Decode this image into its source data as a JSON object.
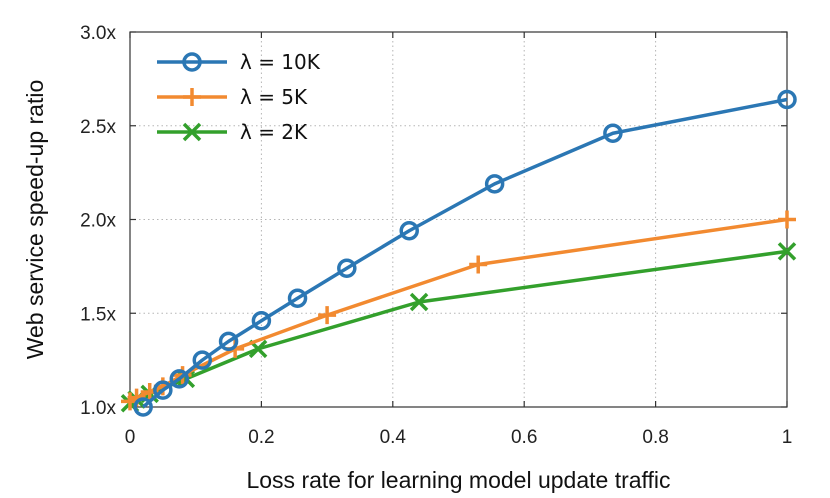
{
  "chart_data": {
    "type": "line",
    "xlabel": "Loss rate for learning model update traffic",
    "ylabel": "Web service speed-up ratio",
    "xlim": [
      0,
      1
    ],
    "ylim": [
      1.0,
      3.0
    ],
    "x_ticks": [
      {
        "value": 0,
        "label": "0"
      },
      {
        "value": 0.2,
        "label": "0.2"
      },
      {
        "value": 0.4,
        "label": "0.4"
      },
      {
        "value": 0.6,
        "label": "0.6"
      },
      {
        "value": 0.8,
        "label": "0.8"
      },
      {
        "value": 1,
        "label": "1"
      }
    ],
    "y_ticks": [
      {
        "value": 1.0,
        "label": "1.0x"
      },
      {
        "value": 1.5,
        "label": "1.5x"
      },
      {
        "value": 2.0,
        "label": "2.0x"
      },
      {
        "value": 2.5,
        "label": "2.5x"
      },
      {
        "value": 3.0,
        "label": "3.0x"
      }
    ],
    "grid": true,
    "legend_position": "top-left",
    "series": [
      {
        "name": "λ = 10K",
        "color": "#2b77b4",
        "marker": "circle",
        "points": [
          [
            0.02,
            1.0
          ],
          [
            0.05,
            1.09
          ],
          [
            0.075,
            1.15
          ],
          [
            0.11,
            1.25
          ],
          [
            0.15,
            1.35
          ],
          [
            0.2,
            1.46
          ],
          [
            0.255,
            1.58
          ],
          [
            0.33,
            1.74
          ],
          [
            0.425,
            1.94
          ],
          [
            0.555,
            2.19
          ],
          [
            0.735,
            2.46
          ],
          [
            1.0,
            2.64
          ]
        ]
      },
      {
        "name": "λ = 5K",
        "color": "#f28a30",
        "marker": "plus",
        "points": [
          [
            0.0,
            1.03
          ],
          [
            0.01,
            1.05
          ],
          [
            0.03,
            1.08
          ],
          [
            0.05,
            1.11
          ],
          [
            0.08,
            1.17
          ],
          [
            0.16,
            1.31
          ],
          [
            0.3,
            1.49
          ],
          [
            0.53,
            1.76
          ],
          [
            1.0,
            2.0
          ]
        ]
      },
      {
        "name": "λ = 2K",
        "color": "#33a02c",
        "marker": "x",
        "points": [
          [
            0.0,
            1.02
          ],
          [
            0.01,
            1.04
          ],
          [
            0.03,
            1.07
          ],
          [
            0.085,
            1.15
          ],
          [
            0.195,
            1.31
          ],
          [
            0.44,
            1.56
          ],
          [
            1.0,
            1.83
          ]
        ]
      }
    ]
  }
}
